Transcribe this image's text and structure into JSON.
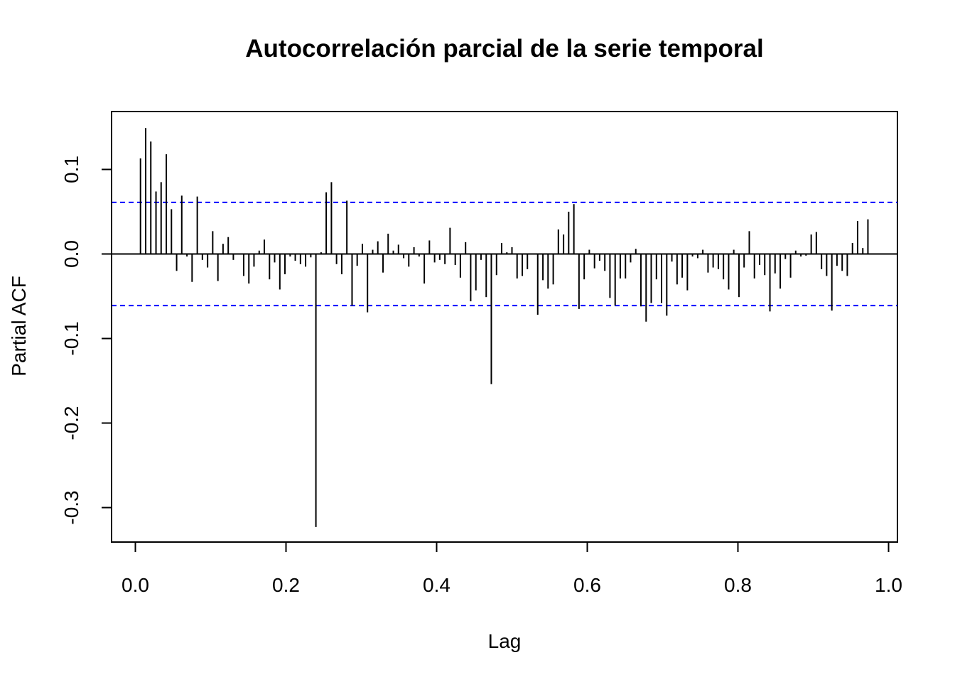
{
  "chart_data": {
    "type": "bar",
    "title": "Autocorrelación parcial de la serie temporal",
    "xlabel": "Lag",
    "ylabel": "Partial ACF",
    "xlim": [
      -0.03,
      1.0
    ],
    "ylim": [
      -0.34,
      0.17
    ],
    "x_ticks": [
      0.0,
      0.2,
      0.4,
      0.6,
      0.8,
      1.0
    ],
    "x_tick_labels": [
      "0.0",
      "0.2",
      "0.4",
      "0.6",
      "0.8",
      "1.0"
    ],
    "y_ticks": [
      0.1,
      0.0,
      -0.1,
      -0.2,
      -0.3
    ],
    "y_tick_labels": [
      "0.1",
      "0.0",
      "-0.1",
      "-0.2",
      "-0.3"
    ],
    "confidence_bound": 0.061,
    "colors": {
      "bars": "#000000",
      "bounds": "#0000ff",
      "zero_line": "#000000"
    },
    "lag_step": 0.00685,
    "lags": [
      0.0068,
      0.0137,
      0.0205,
      0.0274,
      0.0342,
      0.0411,
      0.0479,
      0.0548,
      0.0616,
      0.0685,
      0.0753,
      0.0822,
      0.089,
      0.0959,
      0.1027,
      0.1096,
      0.1164,
      0.1233,
      0.1301,
      0.137,
      0.1438,
      0.1507,
      0.1575,
      0.1644,
      0.1712,
      0.1781,
      0.1849,
      0.1918,
      0.1986,
      0.2055,
      0.2123,
      0.2192,
      0.226,
      0.2329,
      0.2397,
      0.2466,
      0.2534,
      0.2603,
      0.2671,
      0.274,
      0.2808,
      0.2877,
      0.2945,
      0.3014,
      0.3082,
      0.3151,
      0.3219,
      0.3288,
      0.3356,
      0.3425,
      0.3493,
      0.3562,
      0.363,
      0.3699,
      0.3767,
      0.3836,
      0.3904,
      0.3973,
      0.4041,
      0.411,
      0.4178,
      0.4247,
      0.4315,
      0.4384,
      0.4452,
      0.4521,
      0.4589,
      0.4658,
      0.4726,
      0.4795,
      0.4863,
      0.4932,
      0.5,
      0.5068,
      0.5137,
      0.5205,
      0.5274,
      0.5342,
      0.5411,
      0.5479,
      0.5548,
      0.5616,
      0.5685,
      0.5753,
      0.5822,
      0.589,
      0.5959,
      0.6027,
      0.6096,
      0.6164,
      0.6233,
      0.6301,
      0.637,
      0.6438,
      0.6507,
      0.6575,
      0.6644,
      0.6712,
      0.6781,
      0.6849,
      0.6918,
      0.6986,
      0.7055,
      0.7123,
      0.7192,
      0.726,
      0.7329,
      0.7397,
      0.7466,
      0.7534,
      0.7603,
      0.7671,
      0.774,
      0.7808,
      0.7877,
      0.7945,
      0.8014,
      0.8082,
      0.8151,
      0.8219,
      0.8288,
      0.8356,
      0.8425,
      0.8493,
      0.8562,
      0.863,
      0.8699,
      0.8767,
      0.8836,
      0.8904,
      0.8973,
      0.9041,
      0.911,
      0.9178,
      0.9247,
      0.9315,
      0.9384,
      0.9452,
      0.9521,
      0.9589,
      0.9658,
      0.9726
    ],
    "values": [
      0.113,
      0.149,
      0.133,
      0.074,
      0.085,
      0.118,
      0.053,
      -0.02,
      0.069,
      -0.003,
      -0.033,
      0.068,
      -0.007,
      -0.016,
      0.027,
      -0.032,
      0.012,
      0.02,
      -0.007,
      0.0,
      -0.026,
      -0.035,
      -0.015,
      0.004,
      0.017,
      -0.03,
      -0.01,
      -0.042,
      -0.024,
      -0.003,
      -0.008,
      -0.012,
      -0.015,
      -0.004,
      -0.323,
      0.002,
      0.073,
      0.085,
      -0.012,
      -0.024,
      0.063,
      -0.061,
      -0.014,
      0.012,
      -0.069,
      0.005,
      0.015,
      -0.022,
      0.024,
      0.004,
      0.011,
      -0.005,
      -0.015,
      0.008,
      -0.003,
      -0.035,
      0.016,
      -0.01,
      -0.007,
      -0.012,
      0.031,
      -0.013,
      -0.028,
      0.014,
      -0.056,
      -0.043,
      -0.007,
      -0.051,
      -0.154,
      -0.025,
      0.013,
      0.002,
      0.008,
      -0.029,
      -0.026,
      -0.018,
      0.0,
      -0.072,
      -0.031,
      -0.041,
      -0.036,
      0.029,
      0.023,
      0.05,
      0.059,
      -0.065,
      -0.03,
      0.005,
      -0.017,
      -0.008,
      -0.02,
      -0.052,
      -0.061,
      -0.029,
      -0.029,
      -0.01,
      0.006,
      -0.062,
      -0.08,
      -0.058,
      -0.03,
      -0.058,
      -0.073,
      -0.009,
      -0.036,
      -0.028,
      -0.043,
      -0.003,
      -0.005,
      0.005,
      -0.022,
      -0.016,
      -0.018,
      -0.03,
      -0.042,
      0.005,
      -0.051,
      -0.016,
      0.027,
      -0.029,
      -0.013,
      -0.025,
      -0.068,
      -0.023,
      -0.041,
      -0.006,
      -0.028,
      0.004,
      -0.003,
      -0.002,
      0.023,
      0.026,
      -0.018,
      -0.026,
      -0.067,
      -0.014,
      -0.02,
      -0.026,
      0.013,
      0.039,
      0.007,
      0.041
    ]
  }
}
